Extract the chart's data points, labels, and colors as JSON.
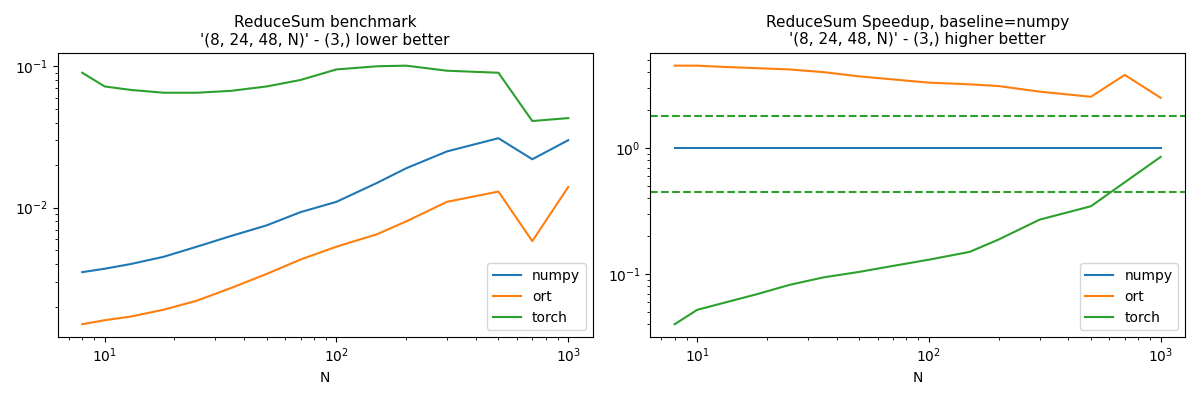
{
  "N": [
    8,
    10,
    13,
    18,
    25,
    35,
    50,
    70,
    100,
    150,
    200,
    300,
    500,
    700,
    1000
  ],
  "left_title": "ReduceSum benchmark\n'(8, 24, 48, N)' - (3,) lower better",
  "left_xlabel": "N",
  "right_title": "ReduceSum Speedup, baseline=numpy\n'(8, 24, 48, N)' - (3,) higher better",
  "right_xlabel": "N",
  "numpy_time": [
    0.0035,
    0.0037,
    0.004,
    0.0045,
    0.0053,
    0.0063,
    0.0075,
    0.0093,
    0.011,
    0.015,
    0.019,
    0.025,
    0.031,
    0.022,
    0.03
  ],
  "ort_time": [
    0.0015,
    0.0016,
    0.0017,
    0.0019,
    0.0022,
    0.0027,
    0.0034,
    0.0043,
    0.0053,
    0.0065,
    0.008,
    0.011,
    0.013,
    0.0058,
    0.014
  ],
  "torch_time": [
    0.09,
    0.072,
    0.068,
    0.065,
    0.065,
    0.067,
    0.072,
    0.08,
    0.095,
    0.1,
    0.101,
    0.093,
    0.09,
    0.041,
    0.043
  ],
  "numpy_color": "#1f77b4",
  "ort_color": "#ff7f0e",
  "torch_color": "#2ca02c",
  "speedup_numpy": [
    1.0,
    1.0,
    1.0,
    1.0,
    1.0,
    1.0,
    1.0,
    1.0,
    1.0,
    1.0,
    1.0,
    1.0,
    1.0,
    1.0,
    1.0
  ],
  "speedup_ort": [
    4.5,
    4.5,
    4.4,
    4.3,
    4.2,
    4.0,
    3.7,
    3.5,
    3.3,
    3.2,
    3.1,
    2.8,
    2.55,
    3.8,
    2.5
  ],
  "speedup_torch": [
    0.04,
    0.052,
    0.059,
    0.069,
    0.082,
    0.094,
    0.104,
    0.116,
    0.13,
    0.15,
    0.188,
    0.27,
    0.345,
    0.535,
    0.85
  ],
  "torch_dashed_high": 1.8,
  "torch_dashed_low": 0.45,
  "left_ylim": [
    0.001,
    0.2
  ],
  "right_ylim": [
    0.035,
    8.0
  ]
}
